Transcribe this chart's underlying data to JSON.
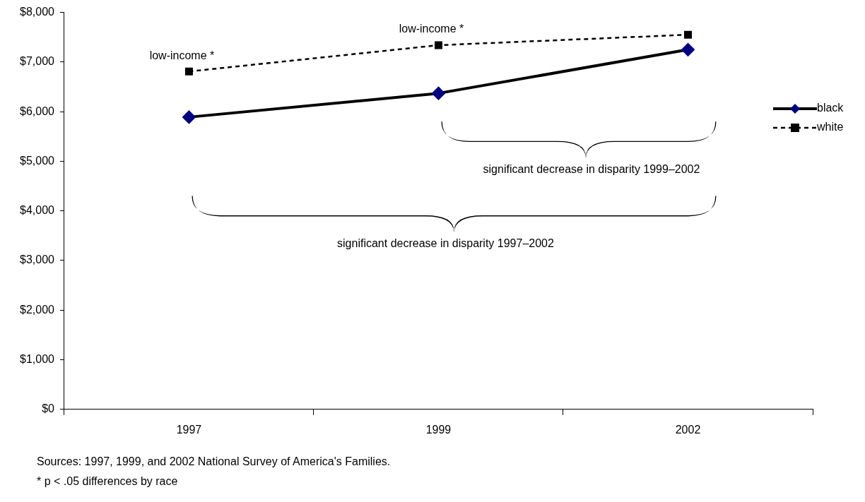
{
  "chart_data": {
    "type": "line",
    "categories": [
      "1997",
      "1999",
      "2002"
    ],
    "series": [
      {
        "name": "black",
        "color": "#000000",
        "colors": [
          "#000080",
          "#000080",
          "#000080"
        ],
        "marker": "diamond",
        "line_style": "solid",
        "values": [
          5890,
          6370,
          7250
        ]
      },
      {
        "name": "white",
        "color": "#000000",
        "marker": "square",
        "line_style": "dashed",
        "values": [
          6810,
          7340,
          7550
        ]
      }
    ],
    "ylim": [
      0,
      8000
    ],
    "yticks": [
      {
        "value": 0,
        "label": "$0"
      },
      {
        "value": 1000,
        "label": "$1,000"
      },
      {
        "value": 2000,
        "label": "$2,000"
      },
      {
        "value": 3000,
        "label": "$3,000"
      },
      {
        "value": 4000,
        "label": "$4,000"
      },
      {
        "value": 5000,
        "label": "$5,000"
      },
      {
        "value": 6000,
        "label": "$6,000"
      },
      {
        "value": 7000,
        "label": "$7,000"
      },
      {
        "value": 8000,
        "label": "$8,000"
      }
    ],
    "grid": false,
    "legend": "right",
    "annotations": [
      {
        "text": "low-income *",
        "x": "1997",
        "y": 6810
      },
      {
        "text": "low-income *",
        "x": "1999",
        "y": 7340
      },
      "significant decrease in disparity 1999–2002",
      "significant decrease in disparity 1997–2002",
      "Sources: 1997, 1999, and 2002 National Survey of America's Families.",
      "* p < .05 differences by race"
    ]
  }
}
